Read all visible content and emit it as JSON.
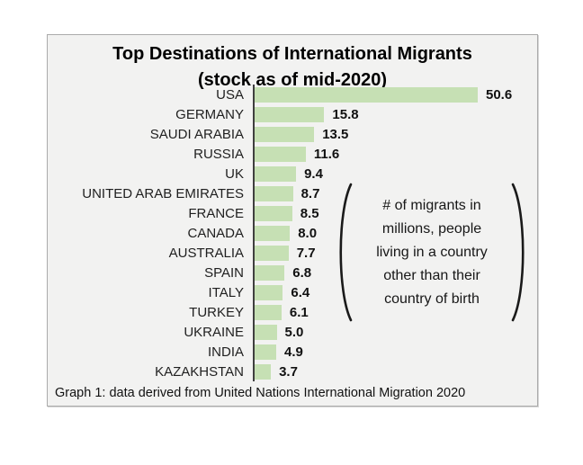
{
  "title": {
    "line1": "Top Destinations of International Migrants",
    "line2": "(stock as of mid-2020)"
  },
  "chart_data": {
    "type": "bar",
    "orientation": "horizontal",
    "title": "Top Destinations of International Migrants (stock as of mid-2020)",
    "categories": [
      "USA",
      "GERMANY",
      "SAUDI ARABIA",
      "RUSSIA",
      "UK",
      "UNITED ARAB EMIRATES",
      "FRANCE",
      "CANADA",
      "AUSTRALIA",
      "SPAIN",
      "ITALY",
      "TURKEY",
      "UKRAINE",
      "INDIA",
      "KAZAKHSTAN"
    ],
    "values": [
      50.6,
      15.8,
      13.5,
      11.6,
      9.4,
      8.7,
      8.5,
      8.0,
      7.7,
      6.8,
      6.4,
      6.1,
      5.0,
      4.9,
      3.7
    ],
    "value_labels": [
      "50.6",
      "15.8",
      "13.5",
      "11.6",
      "9.4",
      "8.7",
      "8.5",
      "8.0",
      "7.7",
      "6.8",
      "6.4",
      "6.1",
      "5.0",
      "4.9",
      "3.7"
    ],
    "xlabel": "",
    "ylabel": "",
    "xlim": [
      0,
      50.6
    ],
    "grid": false,
    "legend": "none",
    "bar_color": "#c6e0b4",
    "axis_color": "#3f3f3f"
  },
  "annotation": {
    "text": "# of migrants in\nmillions, people\nliving in a country\nother than their\ncountry of birth"
  },
  "caption": "Graph 1: data derived from United Nations International Migration 2020"
}
